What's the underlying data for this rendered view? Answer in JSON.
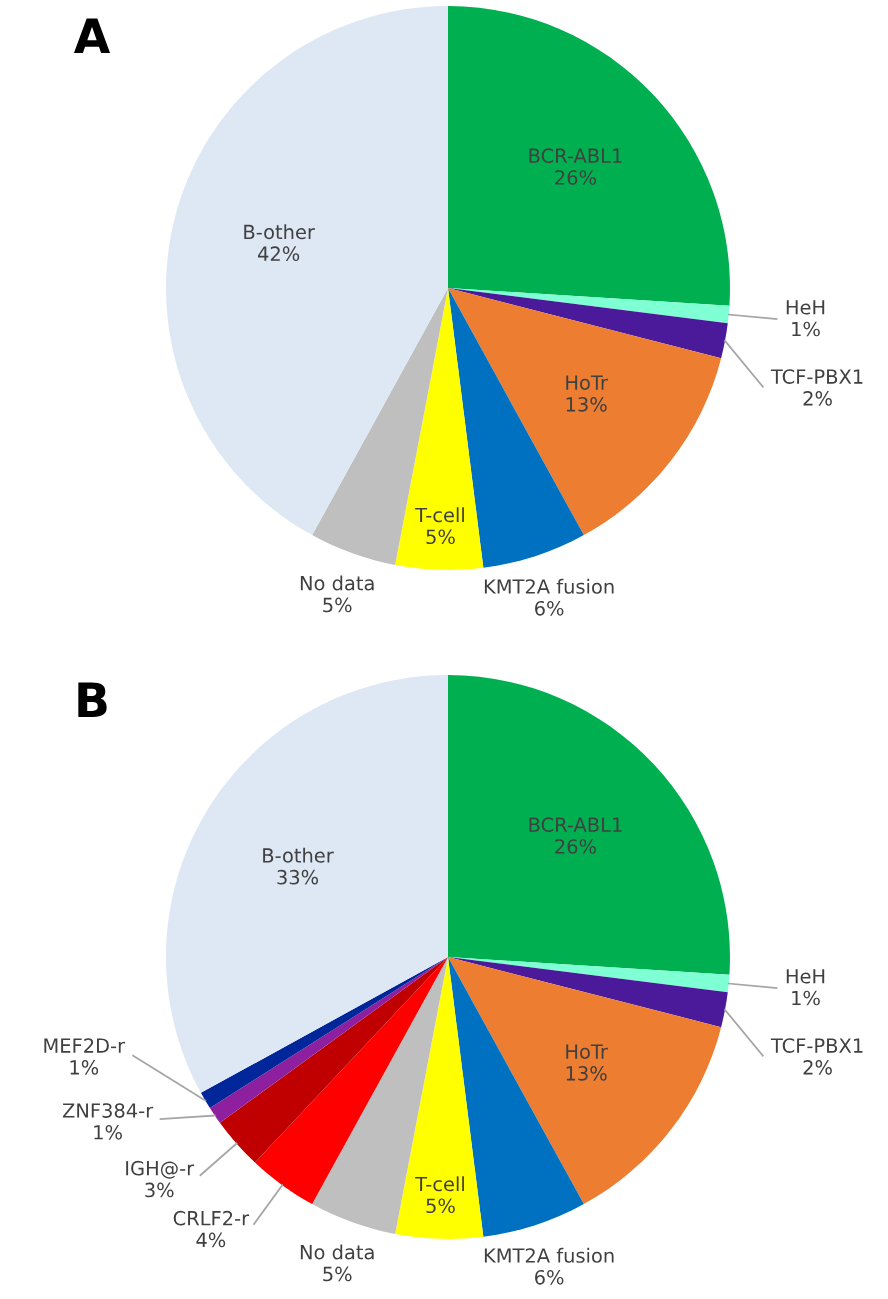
{
  "chart_data": [
    {
      "type": "pie",
      "title": "A",
      "categories": [
        "BCR-ABL1",
        "HeH",
        "TCF-PBX1",
        "HoTr",
        "KMT2A fusion",
        "T-cell",
        "No data",
        "B-other"
      ],
      "values": [
        26,
        1,
        2,
        13,
        6,
        5,
        5,
        42
      ],
      "value_labels": [
        "26%",
        "1%",
        "2%",
        "13%",
        "6%",
        "5%",
        "5%",
        "42%"
      ],
      "colors": [
        "#00b050",
        "#7fffd4",
        "#4b1a9a",
        "#ed7d31",
        "#0070c0",
        "#ffff00",
        "#bfbfbf",
        "#dde8f4"
      ]
    },
    {
      "type": "pie",
      "title": "B",
      "categories": [
        "BCR-ABL1",
        "HeH",
        "TCF-PBX1",
        "HoTr",
        "KMT2A fusion",
        "T-cell",
        "No data",
        "CRLF2-r",
        "IGH@-r",
        "ZNF384-r",
        "MEF2D-r",
        "B-other"
      ],
      "values": [
        26,
        1,
        2,
        13,
        6,
        5,
        5,
        4,
        3,
        1,
        1,
        33
      ],
      "value_labels": [
        "26%",
        "1%",
        "2%",
        "13%",
        "6%",
        "5%",
        "5%",
        "4%",
        "3%",
        "1%",
        "1%",
        "33%"
      ],
      "colors": [
        "#00b050",
        "#7fffd4",
        "#4b1a9a",
        "#ed7d31",
        "#0070c0",
        "#ffff00",
        "#bfbfbf",
        "#ff0000",
        "#c00000",
        "#8e1f9e",
        "#002699",
        "#dde8f4"
      ]
    }
  ]
}
